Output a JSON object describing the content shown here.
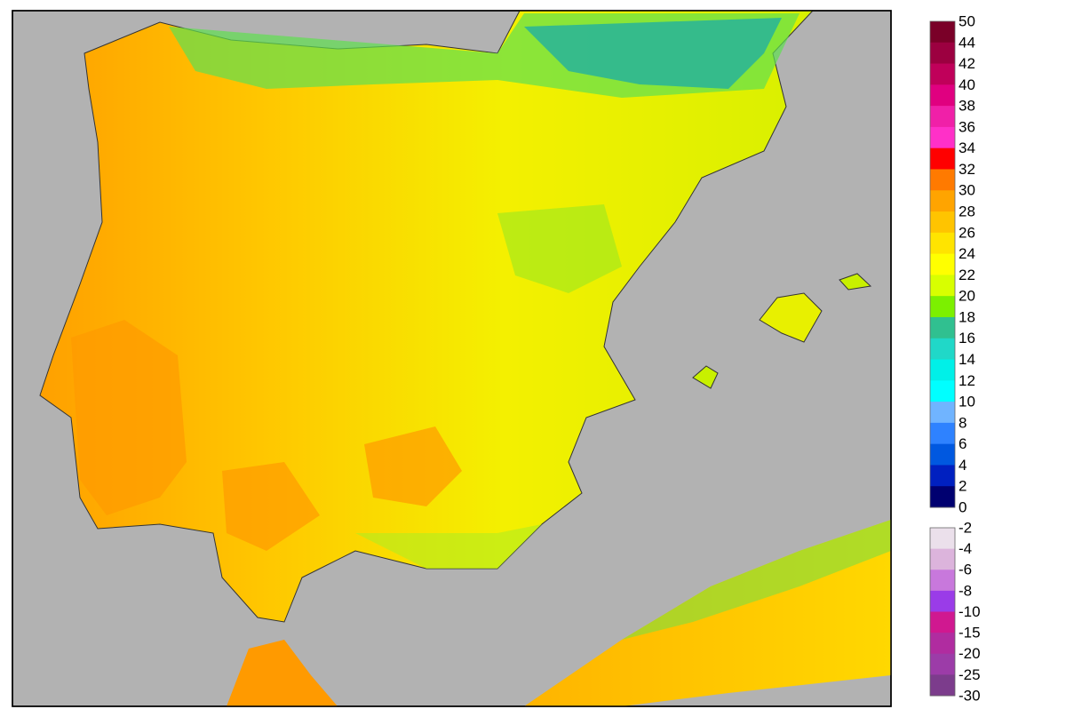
{
  "legend": {
    "upper": {
      "labels": [
        50,
        44,
        42,
        40,
        38,
        36,
        34,
        32,
        30,
        28,
        26,
        24,
        22,
        20,
        18,
        16,
        14,
        12,
        10,
        8,
        6,
        4,
        2,
        0
      ],
      "colors": [
        "#7a0028",
        "#9c0040",
        "#c0005a",
        "#e00080",
        "#f020a8",
        "#ff30c8",
        "#ff0000",
        "#ff7a00",
        "#ffa400",
        "#ffc400",
        "#ffe400",
        "#ffff00",
        "#d8ff00",
        "#7cf000",
        "#30c090",
        "#20d8c8",
        "#00f0e8",
        "#00ffff",
        "#70b4ff",
        "#2e82ff",
        "#0058e0",
        "#0020c0",
        "#000070"
      ]
    },
    "lower": {
      "labels": [
        -2,
        -4,
        -6,
        -8,
        -10,
        -15,
        -20,
        -25,
        -30
      ],
      "colors": [
        "#ebe0eb",
        "#dcb4dc",
        "#c878dc",
        "#9a3ce8",
        "#d01890",
        "#b02ca0",
        "#9c3ca8",
        "#7c3c8c"
      ]
    }
  }
}
